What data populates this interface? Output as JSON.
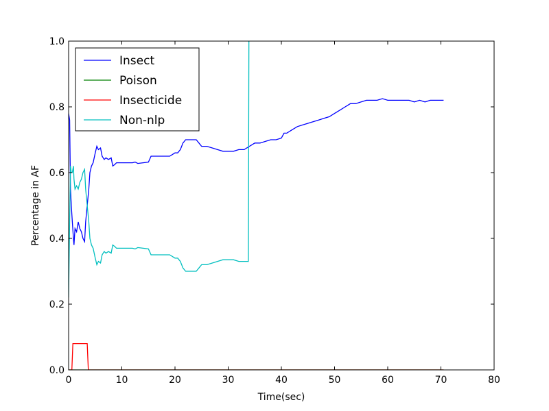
{
  "chart_data": {
    "type": "line",
    "xlabel": "Time(sec)",
    "ylabel": "Percentage in AF",
    "xlim": [
      0,
      80
    ],
    "ylim": [
      0.0,
      1.0
    ],
    "x_ticks": [
      0,
      10,
      20,
      30,
      40,
      50,
      60,
      70,
      80
    ],
    "x_tick_labels": [
      "0",
      "10",
      "20",
      "30",
      "40",
      "50",
      "60",
      "70",
      "80"
    ],
    "y_ticks": [
      0.0,
      0.2,
      0.4,
      0.6,
      0.8,
      1.0
    ],
    "y_tick_labels": [
      "0.0",
      "0.2",
      "0.4",
      "0.6",
      "0.8",
      "1.0"
    ],
    "grid": false,
    "legend_position": "top-left",
    "series": [
      {
        "name": "Insect",
        "color": "#0000ff",
        "points": [
          [
            0,
            0.78
          ],
          [
            0.2,
            0.76
          ],
          [
            0.35,
            0.55
          ],
          [
            0.5,
            0.5
          ],
          [
            0.7,
            0.45
          ],
          [
            0.9,
            0.4
          ],
          [
            1.0,
            0.38
          ],
          [
            1.2,
            0.43
          ],
          [
            1.5,
            0.42
          ],
          [
            1.8,
            0.45
          ],
          [
            2.1,
            0.43
          ],
          [
            2.4,
            0.42
          ],
          [
            2.7,
            0.4
          ],
          [
            3.0,
            0.39
          ],
          [
            3.2,
            0.45
          ],
          [
            3.5,
            0.5
          ],
          [
            3.8,
            0.55
          ],
          [
            4.0,
            0.6
          ],
          [
            4.3,
            0.62
          ],
          [
            4.6,
            0.63
          ],
          [
            5.0,
            0.66
          ],
          [
            5.3,
            0.68
          ],
          [
            5.6,
            0.67
          ],
          [
            6.0,
            0.675
          ],
          [
            6.3,
            0.65
          ],
          [
            6.7,
            0.64
          ],
          [
            7.0,
            0.645
          ],
          [
            7.5,
            0.64
          ],
          [
            8.0,
            0.645
          ],
          [
            8.3,
            0.62
          ],
          [
            8.7,
            0.625
          ],
          [
            9.0,
            0.63
          ],
          [
            12,
            0.63
          ],
          [
            12.5,
            0.632
          ],
          [
            13,
            0.628
          ],
          [
            15,
            0.632
          ],
          [
            15.5,
            0.65
          ],
          [
            18,
            0.65
          ],
          [
            19,
            0.65
          ],
          [
            20,
            0.66
          ],
          [
            20.5,
            0.66
          ],
          [
            21,
            0.67
          ],
          [
            21.5,
            0.69
          ],
          [
            22,
            0.7
          ],
          [
            24,
            0.7
          ],
          [
            24.5,
            0.69
          ],
          [
            25,
            0.68
          ],
          [
            26,
            0.68
          ],
          [
            27,
            0.675
          ],
          [
            28,
            0.67
          ],
          [
            29,
            0.665
          ],
          [
            30,
            0.665
          ],
          [
            31,
            0.665
          ],
          [
            32,
            0.67
          ],
          [
            33,
            0.67
          ],
          [
            34,
            0.68
          ],
          [
            35,
            0.69
          ],
          [
            36,
            0.69
          ],
          [
            37,
            0.695
          ],
          [
            38,
            0.7
          ],
          [
            39,
            0.7
          ],
          [
            40,
            0.705
          ],
          [
            40.5,
            0.72
          ],
          [
            41,
            0.72
          ],
          [
            42,
            0.73
          ],
          [
            43,
            0.74
          ],
          [
            44,
            0.745
          ],
          [
            45,
            0.75
          ],
          [
            46,
            0.755
          ],
          [
            47,
            0.76
          ],
          [
            48,
            0.765
          ],
          [
            49,
            0.77
          ],
          [
            50,
            0.78
          ],
          [
            51,
            0.79
          ],
          [
            52,
            0.8
          ],
          [
            53,
            0.81
          ],
          [
            54,
            0.81
          ],
          [
            55,
            0.815
          ],
          [
            56,
            0.82
          ],
          [
            57,
            0.82
          ],
          [
            58,
            0.82
          ],
          [
            59,
            0.825
          ],
          [
            60,
            0.82
          ],
          [
            61,
            0.82
          ],
          [
            62,
            0.82
          ],
          [
            63,
            0.82
          ],
          [
            64,
            0.82
          ],
          [
            65,
            0.815
          ],
          [
            66,
            0.82
          ],
          [
            67,
            0.815
          ],
          [
            68,
            0.82
          ],
          [
            69,
            0.82
          ],
          [
            70,
            0.82
          ],
          [
            70.5,
            0.82
          ]
        ]
      },
      {
        "name": "Poison",
        "color": "#008000",
        "points": [
          [
            0,
            0.0
          ],
          [
            70.5,
            0.0
          ]
        ]
      },
      {
        "name": "Insecticide",
        "color": "#ff0000",
        "points": [
          [
            0,
            0.0
          ],
          [
            0.6,
            0.0
          ],
          [
            0.8,
            0.08
          ],
          [
            3.5,
            0.08
          ],
          [
            3.7,
            0.0
          ],
          [
            70.5,
            0.0
          ]
        ]
      },
      {
        "name": "Non-nlp",
        "color": "#00bfbf",
        "points": [
          [
            0,
            0.22
          ],
          [
            0.2,
            0.45
          ],
          [
            0.35,
            0.62
          ],
          [
            0.5,
            0.6
          ],
          [
            0.7,
            0.6
          ],
          [
            0.9,
            0.62
          ],
          [
            1.0,
            0.58
          ],
          [
            1.2,
            0.55
          ],
          [
            1.5,
            0.56
          ],
          [
            1.8,
            0.55
          ],
          [
            2.1,
            0.57
          ],
          [
            2.4,
            0.58
          ],
          [
            2.7,
            0.6
          ],
          [
            3.0,
            0.61
          ],
          [
            3.2,
            0.55
          ],
          [
            3.5,
            0.5
          ],
          [
            3.8,
            0.45
          ],
          [
            4.0,
            0.4
          ],
          [
            4.3,
            0.38
          ],
          [
            4.6,
            0.37
          ],
          [
            5.0,
            0.34
          ],
          [
            5.3,
            0.32
          ],
          [
            5.6,
            0.33
          ],
          [
            6.0,
            0.325
          ],
          [
            6.3,
            0.35
          ],
          [
            6.7,
            0.36
          ],
          [
            7.0,
            0.355
          ],
          [
            7.5,
            0.36
          ],
          [
            8.0,
            0.355
          ],
          [
            8.3,
            0.38
          ],
          [
            8.7,
            0.375
          ],
          [
            9.0,
            0.37
          ],
          [
            12,
            0.37
          ],
          [
            12.5,
            0.368
          ],
          [
            13,
            0.372
          ],
          [
            15,
            0.368
          ],
          [
            15.5,
            0.35
          ],
          [
            18,
            0.35
          ],
          [
            19,
            0.35
          ],
          [
            20,
            0.34
          ],
          [
            20.5,
            0.34
          ],
          [
            21,
            0.33
          ],
          [
            21.5,
            0.31
          ],
          [
            22,
            0.3
          ],
          [
            24,
            0.3
          ],
          [
            24.5,
            0.31
          ],
          [
            25,
            0.32
          ],
          [
            26,
            0.32
          ],
          [
            27,
            0.325
          ],
          [
            28,
            0.33
          ],
          [
            29,
            0.335
          ],
          [
            30,
            0.335
          ],
          [
            31,
            0.335
          ],
          [
            32,
            0.33
          ],
          [
            33,
            0.33
          ],
          [
            33.8,
            0.33
          ],
          [
            33.9,
            1.0
          ],
          [
            34.2,
            1.05
          ]
        ]
      }
    ]
  }
}
